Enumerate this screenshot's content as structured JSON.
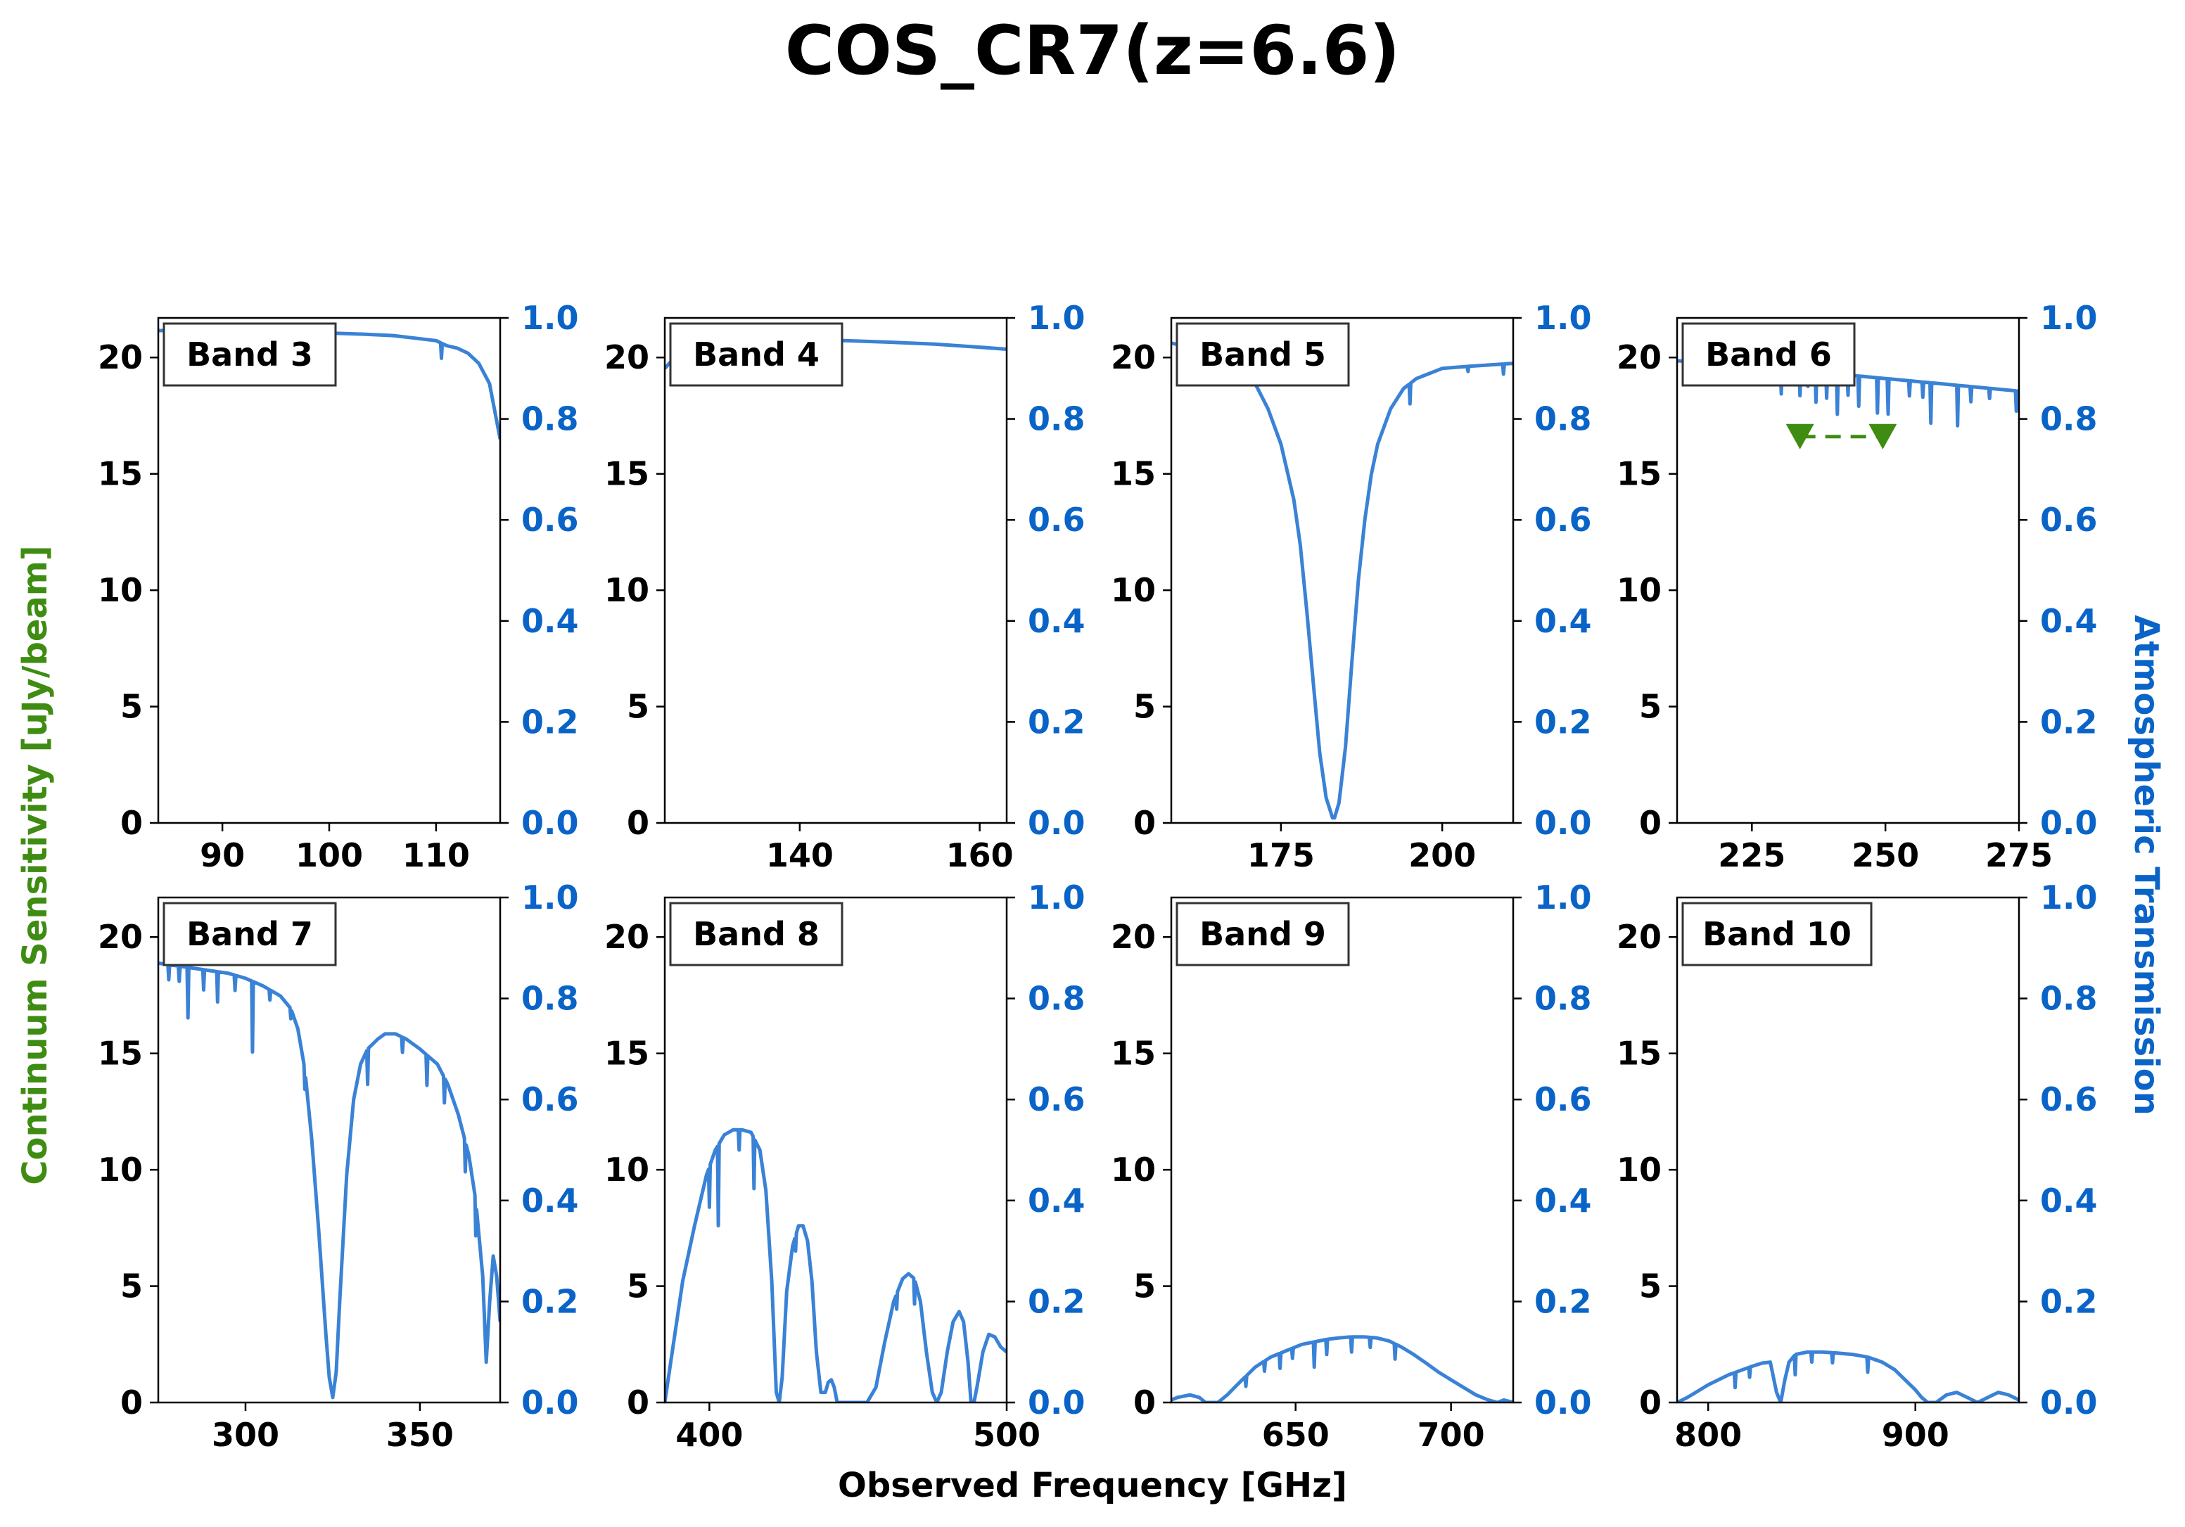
{
  "colors": {
    "transmission": "#3a82d6",
    "right_axis": "#0a64c8",
    "sensitivity": "#3f8c12",
    "axis": "#000000"
  },
  "chart_data": {
    "type": "line",
    "title": "COS_CR7(z=6.6)",
    "xlabel": "Observed Frequency [GHz]",
    "ylabel_left": "Continuum Sensitivity [uJy/beam]",
    "ylabel_right": "Atmospheric Transmission",
    "ylim_left": [
      0,
      21.7
    ],
    "ylim_right": [
      0,
      1.0
    ],
    "left_ticks": [
      "0",
      "5",
      "10",
      "15",
      "20"
    ],
    "right_ticks": [
      "0.0",
      "0.2",
      "0.4",
      "0.6",
      "0.8",
      "1.0"
    ],
    "panels": [
      {
        "label": "Band 3",
        "xlim": [
          84,
          116
        ],
        "xticks": [
          90,
          100,
          110
        ],
        "xtick_labels": [
          "90",
          "100",
          "110"
        ],
        "transmission": {
          "x": [
            84,
            86,
            90,
            95,
            100,
            103,
            106,
            108,
            110,
            111,
            112,
            113,
            114,
            115,
            116
          ],
          "y": [
            0.975,
            0.975,
            0.975,
            0.973,
            0.97,
            0.968,
            0.965,
            0.96,
            0.955,
            0.945,
            0.94,
            0.93,
            0.91,
            0.87,
            0.76
          ]
        },
        "dips": [
          [
            110.5,
            0.03
          ]
        ]
      },
      {
        "label": "Band 4",
        "xlim": [
          125,
          163
        ],
        "xticks": [
          140,
          160
        ],
        "xtick_labels": [
          "140",
          "160"
        ],
        "transmission": {
          "x": [
            125,
            126,
            128,
            132,
            138,
            145,
            150,
            155,
            160,
            163
          ],
          "y": [
            0.9,
            0.92,
            0.935,
            0.948,
            0.955,
            0.955,
            0.952,
            0.948,
            0.942,
            0.938
          ]
        },
        "dips": []
      },
      {
        "label": "Band 5",
        "xlim": [
          158,
          211
        ],
        "xticks": [
          175,
          200
        ],
        "xtick_labels": [
          "175",
          "200"
        ],
        "transmission": {
          "x": [
            158,
            162,
            166,
            169,
            171,
            173,
            175,
            177,
            178,
            179,
            180,
            181,
            182,
            183,
            183.3,
            184,
            185,
            186,
            187,
            188,
            189,
            190,
            192,
            194,
            196,
            198,
            200,
            205,
            211
          ],
          "y": [
            0.95,
            0.94,
            0.92,
            0.9,
            0.87,
            0.82,
            0.75,
            0.64,
            0.55,
            0.42,
            0.28,
            0.14,
            0.05,
            0.01,
            0.01,
            0.04,
            0.15,
            0.32,
            0.48,
            0.6,
            0.69,
            0.75,
            0.82,
            0.86,
            0.88,
            0.89,
            0.9,
            0.905,
            0.91
          ]
        },
        "dips": [
          [
            166.5,
            0.04
          ],
          [
            195,
            0.04
          ],
          [
            204,
            0.01
          ],
          [
            209.5,
            0.02
          ]
        ]
      },
      {
        "label": "Band 6",
        "xlim": [
          211,
          275
        ],
        "xticks": [
          225,
          250,
          275
        ],
        "xtick_labels": [
          "225",
          "250",
          "275"
        ],
        "transmission": {
          "x": [
            211,
            220,
            230,
            240,
            250,
            260,
            270,
            275
          ],
          "y": [
            0.915,
            0.91,
            0.9,
            0.89,
            0.88,
            0.87,
            0.86,
            0.855
          ]
        },
        "dips": [
          [
            230.5,
            0.05
          ],
          [
            234,
            0.05
          ],
          [
            235.5,
            0.03
          ],
          [
            237,
            0.06
          ],
          [
            239,
            0.05
          ],
          [
            241,
            0.08
          ],
          [
            243,
            0.04
          ],
          [
            245,
            0.06
          ],
          [
            248.5,
            0.07
          ],
          [
            250.5,
            0.07
          ],
          [
            254.5,
            0.03
          ],
          [
            257,
            0.03
          ],
          [
            258.5,
            0.08
          ],
          [
            263.5,
            0.08
          ],
          [
            266,
            0.03
          ],
          [
            269.5,
            0.02
          ],
          [
            274.5,
            0.04
          ]
        ]
      },
      {
        "label": "Band 7",
        "xlim": [
          275,
          373
        ],
        "xticks": [
          300,
          350
        ],
        "xtick_labels": [
          "300",
          "350"
        ],
        "transmission": {
          "x": [
            275,
            280,
            285,
            290,
            295,
            300,
            305,
            310,
            313,
            315,
            317,
            319,
            321,
            323,
            324,
            325,
            326,
            327,
            329,
            331,
            333,
            335,
            338,
            340,
            343,
            346,
            350,
            355,
            358,
            361,
            364,
            366,
            368,
            369,
            370,
            371,
            372,
            373
          ],
          "y": [
            0.87,
            0.865,
            0.86,
            0.855,
            0.85,
            0.84,
            0.825,
            0.805,
            0.78,
            0.74,
            0.66,
            0.52,
            0.34,
            0.14,
            0.05,
            0.01,
            0.06,
            0.2,
            0.45,
            0.6,
            0.67,
            0.7,
            0.72,
            0.73,
            0.73,
            0.72,
            0.7,
            0.67,
            0.63,
            0.57,
            0.49,
            0.4,
            0.25,
            0.08,
            0.2,
            0.29,
            0.25,
            0.16
          ]
        },
        "dips": [
          [
            278,
            0.03
          ],
          [
            281,
            0.03
          ],
          [
            283.5,
            0.1
          ],
          [
            288,
            0.04
          ],
          [
            292,
            0.06
          ],
          [
            297,
            0.03
          ],
          [
            302,
            0.14
          ],
          [
            307,
            0.02
          ],
          [
            313,
            0.02
          ],
          [
            317,
            0.04
          ],
          [
            335,
            0.07
          ],
          [
            345,
            0.03
          ],
          [
            352,
            0.06
          ],
          [
            357,
            0.05
          ],
          [
            363,
            0.06
          ],
          [
            366,
            0.07
          ]
        ]
      },
      {
        "label": "Band 8",
        "xlim": [
          385,
          500
        ],
        "xticks": [
          400,
          500
        ],
        "xtick_labels": [
          "400",
          "500"
        ],
        "transmission": {
          "x": [
            385,
            388,
            391,
            395,
            399,
            402,
            405,
            408,
            411,
            414,
            417,
            419,
            421,
            422.5,
            423.5,
            424.5,
            426,
            428,
            430,
            431.5,
            433,
            434.5,
            436,
            437.5,
            439,
            440,
            441,
            442,
            443,
            445,
            449,
            453,
            456,
            459,
            462,
            465,
            467,
            469,
            471,
            473,
            475,
            476.5,
            478,
            480,
            482,
            484,
            485.5,
            487,
            488,
            489,
            490,
            492,
            494,
            496,
            498,
            500
          ],
          "y": [
            0.0,
            0.12,
            0.24,
            0.35,
            0.45,
            0.5,
            0.53,
            0.54,
            0.54,
            0.535,
            0.5,
            0.42,
            0.24,
            0.02,
            0.0,
            0.05,
            0.22,
            0.31,
            0.35,
            0.35,
            0.32,
            0.24,
            0.1,
            0.02,
            0.02,
            0.04,
            0.045,
            0.03,
            0.0,
            0.0,
            0.0,
            0.0,
            0.03,
            0.12,
            0.2,
            0.245,
            0.255,
            0.245,
            0.2,
            0.1,
            0.02,
            0.0,
            0.02,
            0.1,
            0.16,
            0.18,
            0.16,
            0.08,
            0.0,
            0.0,
            0.03,
            0.1,
            0.135,
            0.13,
            0.11,
            0.1
          ]
        },
        "dips": [
          [
            400,
            0.08
          ],
          [
            403,
            0.16
          ],
          [
            410,
            0.04
          ],
          [
            415,
            0.1
          ],
          [
            429,
            0.03
          ],
          [
            463,
            0.03
          ],
          [
            469,
            0.05
          ]
        ]
      },
      {
        "label": "Band 9",
        "xlim": [
          610,
          720
        ],
        "xticks": [
          650,
          700
        ],
        "xtick_labels": [
          "650",
          "700"
        ],
        "transmission": {
          "x": [
            610,
            612,
            616,
            619,
            621,
            623,
            625,
            628,
            632,
            637,
            642,
            648,
            652,
            656,
            660,
            664,
            668,
            672,
            676,
            680,
            684,
            688,
            692,
            696,
            700,
            704,
            708,
            712,
            715,
            717,
            720
          ],
          "y": [
            0.005,
            0.01,
            0.015,
            0.01,
            0.0,
            0.0,
            0.0,
            0.015,
            0.04,
            0.07,
            0.09,
            0.105,
            0.115,
            0.12,
            0.125,
            0.128,
            0.13,
            0.13,
            0.128,
            0.122,
            0.11,
            0.095,
            0.078,
            0.06,
            0.045,
            0.03,
            0.015,
            0.005,
            0.0,
            0.005,
            0.0
          ]
        },
        "dips": [
          [
            634,
            0.02
          ],
          [
            640,
            0.02
          ],
          [
            645,
            0.03
          ],
          [
            649,
            0.02
          ],
          [
            656,
            0.05
          ],
          [
            660,
            0.03
          ],
          [
            668,
            0.03
          ],
          [
            674,
            0.02
          ],
          [
            682,
            0.03
          ]
        ]
      },
      {
        "label": "Band 10",
        "xlim": [
          785,
          950
        ],
        "xticks": [
          800,
          900
        ],
        "xtick_labels": [
          "800",
          "900"
        ],
        "transmission": {
          "x": [
            785,
            790,
            800,
            810,
            820,
            826,
            830,
            833,
            835,
            837,
            839,
            842,
            848,
            855,
            862,
            870,
            877,
            884,
            890,
            895,
            900,
            903,
            906,
            910,
            915,
            920,
            925,
            930,
            935,
            940,
            945,
            950
          ],
          "y": [
            0.0,
            0.01,
            0.035,
            0.055,
            0.07,
            0.078,
            0.08,
            0.02,
            0.0,
            0.045,
            0.08,
            0.095,
            0.1,
            0.1,
            0.098,
            0.095,
            0.09,
            0.08,
            0.065,
            0.045,
            0.025,
            0.01,
            0.0,
            0.0,
            0.015,
            0.02,
            0.01,
            0.0,
            0.01,
            0.02,
            0.015,
            0.005
          ]
        },
        "dips": [
          [
            813,
            0.03
          ],
          [
            820,
            0.02
          ],
          [
            842,
            0.04
          ],
          [
            850,
            0.02
          ],
          [
            860,
            0.02
          ],
          [
            877,
            0.03
          ]
        ]
      }
    ],
    "sensitivity_markers": {
      "panel": "Band 6",
      "type": "upper-limit",
      "points": [
        {
          "x": 234,
          "y": 16.6
        },
        {
          "x": 249.5,
          "y": 16.6
        }
      ],
      "connect": "dashed"
    }
  }
}
